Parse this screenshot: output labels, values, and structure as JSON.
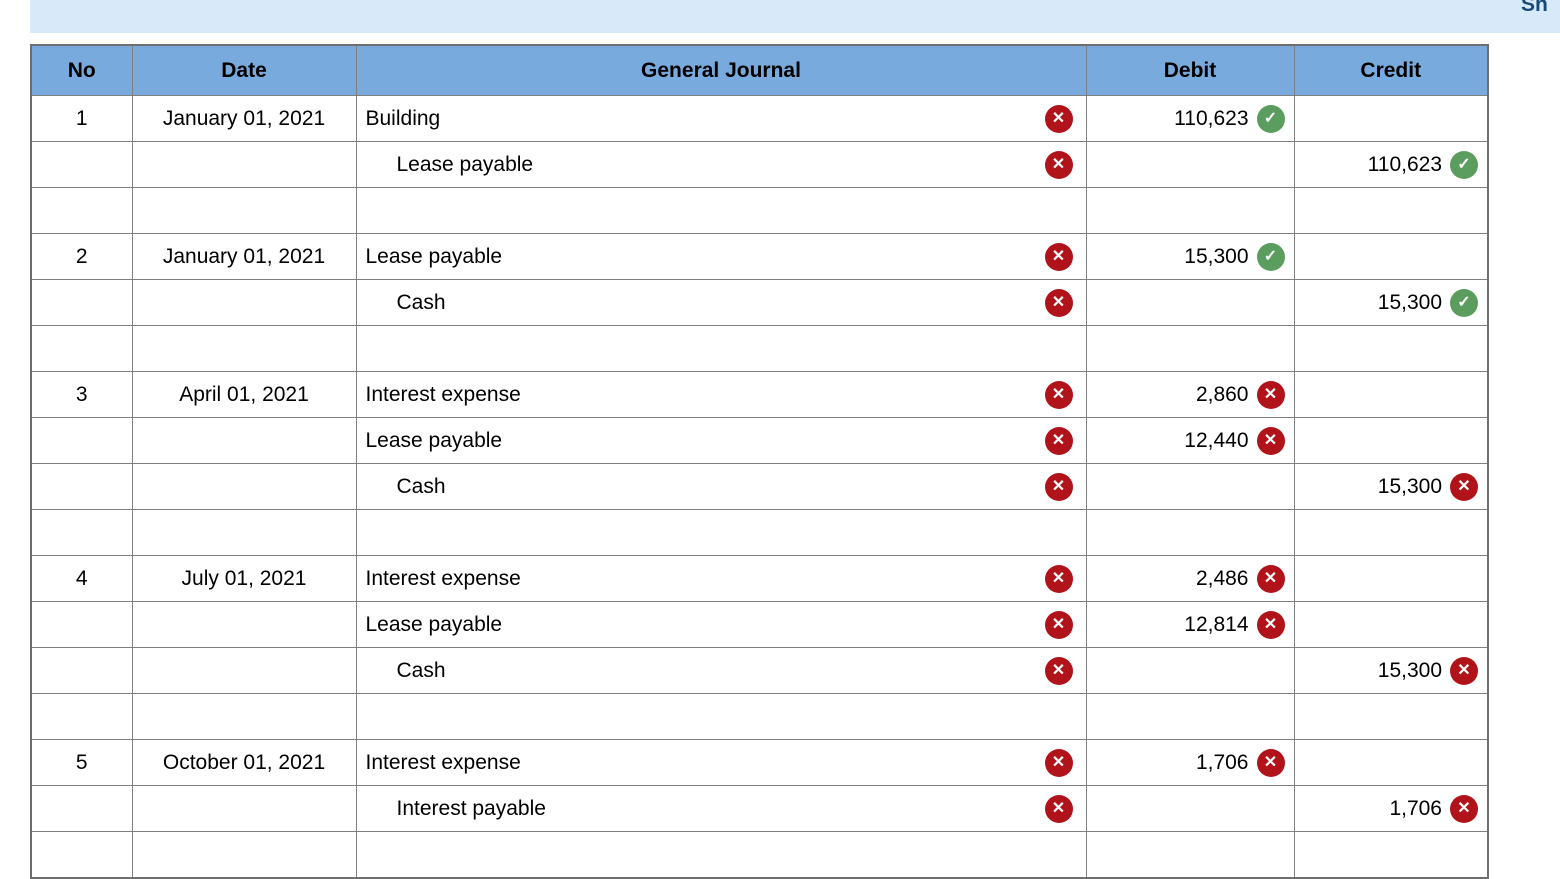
{
  "top_bar": {
    "partial_text": "Sh",
    "bg_color": "#d8eafa",
    "text_color": "#17497b"
  },
  "table": {
    "headers": [
      "No",
      "Date",
      "General Journal",
      "Debit",
      "Credit"
    ],
    "header_bg": "#79aadd",
    "colors": {
      "wrong_cell_bg": "#fdf0f1",
      "correct_cell_bg": "#f3f8f0",
      "wrong_icon": "#b0131a",
      "correct_icon": "#5b9d5e",
      "border": "#7f7f7f"
    },
    "icons": {
      "wrong": "✕",
      "correct": "✓"
    },
    "rows": [
      {
        "no": "1",
        "date": "January 01, 2021",
        "account": "Building",
        "indent": false,
        "account_status": "wrong",
        "debit": "110,623",
        "debit_status": "correct",
        "credit": "",
        "credit_status": ""
      },
      {
        "no": "",
        "date": "",
        "account": "Lease payable",
        "indent": true,
        "account_status": "wrong",
        "debit": "",
        "debit_status": "",
        "credit": "110,623",
        "credit_status": "correct"
      },
      {
        "spacer": true
      },
      {
        "no": "2",
        "date": "January 01, 2021",
        "account": "Lease payable",
        "indent": false,
        "account_status": "wrong",
        "debit": "15,300",
        "debit_status": "correct",
        "credit": "",
        "credit_status": ""
      },
      {
        "no": "",
        "date": "",
        "account": "Cash",
        "indent": true,
        "account_status": "wrong",
        "debit": "",
        "debit_status": "",
        "credit": "15,300",
        "credit_status": "correct"
      },
      {
        "spacer": true
      },
      {
        "no": "3",
        "date": "April 01, 2021",
        "account": "Interest expense",
        "indent": false,
        "account_status": "wrong",
        "debit": "2,860",
        "debit_status": "wrong",
        "credit": "",
        "credit_status": ""
      },
      {
        "no": "",
        "date": "",
        "account": "Lease payable",
        "indent": false,
        "account_status": "wrong",
        "debit": "12,440",
        "debit_status": "wrong",
        "credit": "",
        "credit_status": ""
      },
      {
        "no": "",
        "date": "",
        "account": "Cash",
        "indent": true,
        "account_status": "wrong",
        "debit": "",
        "debit_status": "",
        "credit": "15,300",
        "credit_status": "wrong"
      },
      {
        "spacer": true
      },
      {
        "no": "4",
        "date": "July 01, 2021",
        "account": "Interest expense",
        "indent": false,
        "account_status": "wrong",
        "debit": "2,486",
        "debit_status": "wrong",
        "credit": "",
        "credit_status": ""
      },
      {
        "no": "",
        "date": "",
        "account": "Lease payable",
        "indent": false,
        "account_status": "wrong",
        "debit": "12,814",
        "debit_status": "wrong",
        "credit": "",
        "credit_status": ""
      },
      {
        "no": "",
        "date": "",
        "account": "Cash",
        "indent": true,
        "account_status": "wrong",
        "debit": "",
        "debit_status": "",
        "credit": "15,300",
        "credit_status": "wrong"
      },
      {
        "spacer": true
      },
      {
        "no": "5",
        "date": "October 01, 2021",
        "account": "Interest expense",
        "indent": false,
        "account_status": "wrong",
        "debit": "1,706",
        "debit_status": "wrong",
        "credit": "",
        "credit_status": ""
      },
      {
        "no": "",
        "date": "",
        "account": "Interest payable",
        "indent": true,
        "account_status": "wrong",
        "debit": "",
        "debit_status": "",
        "credit": "1,706",
        "credit_status": "wrong"
      },
      {
        "spacer": true
      }
    ]
  }
}
